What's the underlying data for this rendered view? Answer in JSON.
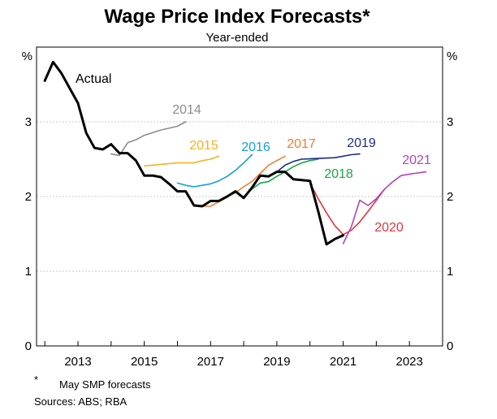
{
  "chart_data": {
    "type": "line",
    "title": "Wage Price Index Forecasts*",
    "subtitle": "Year-ended",
    "y_unit": "%",
    "ylim": [
      0,
      4
    ],
    "yticks": [
      0,
      1,
      2,
      3
    ],
    "xlim": [
      2011.75,
      2024.0
    ],
    "xticks": [
      2013,
      2015,
      2017,
      2019,
      2021,
      2023
    ],
    "xtick_labels": [
      "2013",
      "2015",
      "2017",
      "2019",
      "2021",
      "2023"
    ],
    "grid": true,
    "footnote_marker": "*",
    "footnote": "May SMP forecasts",
    "sources": "Sources: ABS; RBA",
    "series": [
      {
        "name": "Actual",
        "color": "#000000",
        "points": [
          [
            2012.0,
            3.55
          ],
          [
            2012.25,
            3.8
          ],
          [
            2012.5,
            3.65
          ],
          [
            2012.75,
            3.45
          ],
          [
            2013.0,
            3.25
          ],
          [
            2013.25,
            2.85
          ],
          [
            2013.5,
            2.65
          ],
          [
            2013.75,
            2.63
          ],
          [
            2014.0,
            2.7
          ],
          [
            2014.25,
            2.58
          ],
          [
            2014.5,
            2.58
          ],
          [
            2014.75,
            2.48
          ],
          [
            2015.0,
            2.28
          ],
          [
            2015.25,
            2.28
          ],
          [
            2015.5,
            2.26
          ],
          [
            2015.75,
            2.17
          ],
          [
            2016.0,
            2.07
          ],
          [
            2016.25,
            2.07
          ],
          [
            2016.5,
            1.88
          ],
          [
            2016.75,
            1.87
          ],
          [
            2017.0,
            1.94
          ],
          [
            2017.25,
            1.94
          ],
          [
            2017.5,
            2.0
          ],
          [
            2017.75,
            2.07
          ],
          [
            2018.0,
            1.98
          ],
          [
            2018.25,
            2.12
          ],
          [
            2018.5,
            2.28
          ],
          [
            2018.75,
            2.27
          ],
          [
            2019.0,
            2.33
          ],
          [
            2019.25,
            2.33
          ],
          [
            2019.5,
            2.23
          ],
          [
            2019.75,
            2.22
          ],
          [
            2020.0,
            2.21
          ],
          [
            2020.25,
            1.8
          ],
          [
            2020.5,
            1.36
          ],
          [
            2020.75,
            1.43
          ],
          [
            2021.0,
            1.48
          ]
        ]
      },
      {
        "name": "2014",
        "color": "#8c8c8c",
        "points": [
          [
            2014.0,
            2.57
          ],
          [
            2014.25,
            2.55
          ],
          [
            2014.5,
            2.72
          ],
          [
            2014.75,
            2.76
          ],
          [
            2015.0,
            2.82
          ],
          [
            2015.5,
            2.89
          ],
          [
            2016.0,
            2.94
          ],
          [
            2016.25,
            3.0
          ]
        ]
      },
      {
        "name": "2015",
        "color": "#f5b120",
        "points": [
          [
            2015.0,
            2.41
          ],
          [
            2015.5,
            2.43
          ],
          [
            2016.0,
            2.45
          ],
          [
            2016.5,
            2.45
          ],
          [
            2016.75,
            2.48
          ],
          [
            2017.0,
            2.5
          ],
          [
            2017.25,
            2.54
          ]
        ]
      },
      {
        "name": "2016",
        "color": "#14a0d8",
        "points": [
          [
            2016.0,
            2.18
          ],
          [
            2016.25,
            2.15
          ],
          [
            2016.5,
            2.13
          ],
          [
            2016.75,
            2.15
          ],
          [
            2017.0,
            2.17
          ],
          [
            2017.25,
            2.21
          ],
          [
            2017.5,
            2.27
          ],
          [
            2017.75,
            2.35
          ],
          [
            2018.0,
            2.45
          ],
          [
            2018.25,
            2.56
          ]
        ]
      },
      {
        "name": "2017",
        "color": "#f07c3a",
        "points": [
          [
            2016.75,
            1.87
          ],
          [
            2017.0,
            1.87
          ],
          [
            2017.25,
            1.93
          ],
          [
            2017.5,
            2.0
          ],
          [
            2017.75,
            2.05
          ],
          [
            2018.0,
            2.13
          ],
          [
            2018.25,
            2.2
          ],
          [
            2018.5,
            2.31
          ],
          [
            2018.75,
            2.42
          ],
          [
            2019.0,
            2.48
          ],
          [
            2019.25,
            2.54
          ]
        ]
      },
      {
        "name": "2018",
        "color": "#1aa34a",
        "points": [
          [
            2018.0,
            2.0
          ],
          [
            2018.25,
            2.1
          ],
          [
            2018.5,
            2.18
          ],
          [
            2018.75,
            2.2
          ],
          [
            2019.0,
            2.27
          ],
          [
            2019.25,
            2.33
          ],
          [
            2019.5,
            2.4
          ],
          [
            2019.75,
            2.45
          ],
          [
            2020.0,
            2.48
          ],
          [
            2020.25,
            2.5
          ]
        ]
      },
      {
        "name": "2019",
        "color": "#1b2b8c",
        "points": [
          [
            2019.0,
            2.33
          ],
          [
            2019.25,
            2.42
          ],
          [
            2019.5,
            2.47
          ],
          [
            2019.75,
            2.5
          ],
          [
            2020.25,
            2.51
          ],
          [
            2020.75,
            2.52
          ],
          [
            2021.25,
            2.56
          ],
          [
            2021.5,
            2.57
          ]
        ]
      },
      {
        "name": "2020",
        "color": "#e0363c",
        "points": [
          [
            2020.0,
            2.18
          ],
          [
            2020.25,
            1.97
          ],
          [
            2020.5,
            1.78
          ],
          [
            2020.75,
            1.61
          ],
          [
            2021.0,
            1.49
          ],
          [
            2021.25,
            1.55
          ],
          [
            2021.5,
            1.66
          ],
          [
            2021.75,
            1.8
          ],
          [
            2022.0,
            1.95
          ],
          [
            2022.25,
            2.1
          ]
        ]
      },
      {
        "name": "2021",
        "color": "#b243b8",
        "points": [
          [
            2021.0,
            1.37
          ],
          [
            2021.25,
            1.6
          ],
          [
            2021.5,
            1.95
          ],
          [
            2021.75,
            1.88
          ],
          [
            2022.0,
            1.97
          ],
          [
            2022.25,
            2.1
          ],
          [
            2022.5,
            2.2
          ],
          [
            2022.75,
            2.28
          ],
          [
            2023.0,
            2.3
          ],
          [
            2023.5,
            2.33
          ]
        ]
      }
    ]
  }
}
